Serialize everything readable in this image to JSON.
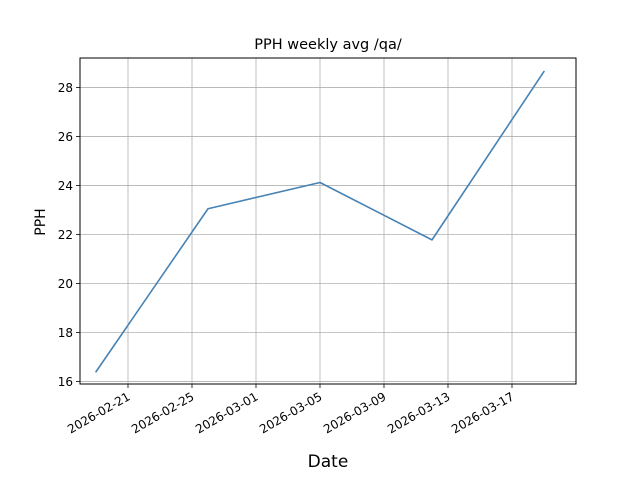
{
  "chart_data": {
    "type": "line",
    "title": "PPH weekly avg /qa/",
    "xlabel": "Date",
    "ylabel": "PPH",
    "grid": true,
    "line_color": "#4682b4",
    "x_ticks": [
      "2026-02-21",
      "2026-02-25",
      "2026-03-01",
      "2026-03-05",
      "2026-03-09",
      "2026-03-13",
      "2026-03-17"
    ],
    "y_ticks": [
      16,
      18,
      20,
      22,
      24,
      26,
      28
    ],
    "xlim": [
      "2026-02-18",
      "2026-03-21"
    ],
    "ylim": [
      15.9,
      29.2
    ],
    "series": [
      {
        "x": [
          "2026-02-19",
          "2026-02-26",
          "2026-03-05",
          "2026-03-12",
          "2026-03-19"
        ],
        "y": [
          16.4,
          23.05,
          24.12,
          21.78,
          28.65
        ]
      }
    ]
  }
}
